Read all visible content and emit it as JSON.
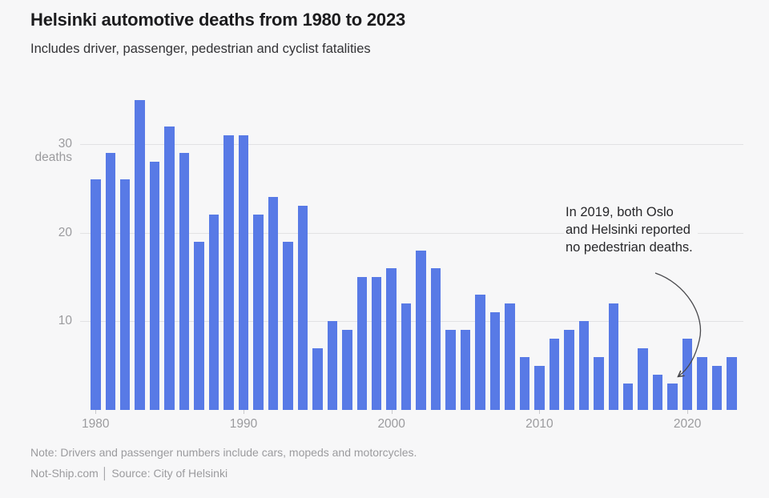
{
  "header": {
    "title": "Helsinki automotive deaths from 1980 to 2023",
    "subtitle": "Includes driver, passenger, pedestrian and cyclist fatalities"
  },
  "chart_data": {
    "type": "bar",
    "x": [
      1980,
      1981,
      1982,
      1983,
      1984,
      1985,
      1986,
      1987,
      1988,
      1989,
      1990,
      1991,
      1992,
      1993,
      1994,
      1995,
      1996,
      1997,
      1998,
      1999,
      2000,
      2001,
      2002,
      2003,
      2004,
      2005,
      2006,
      2007,
      2008,
      2009,
      2010,
      2011,
      2012,
      2013,
      2014,
      2015,
      2016,
      2017,
      2018,
      2019,
      2020,
      2021,
      2022,
      2023
    ],
    "values": [
      26,
      29,
      26,
      35,
      28,
      32,
      29,
      19,
      22,
      31,
      31,
      22,
      24,
      19,
      23,
      7,
      10,
      9,
      15,
      15,
      16,
      12,
      18,
      16,
      9,
      9,
      13,
      11,
      12,
      6,
      5,
      8,
      9,
      10,
      6,
      12,
      3,
      7,
      4,
      3,
      8,
      6,
      5,
      6
    ],
    "title": "Helsinki automotive deaths from 1980 to 2023",
    "xlabel": "",
    "ylabel": "deaths",
    "ylim": [
      0,
      36
    ],
    "yticks": [
      10,
      20,
      30
    ],
    "xticks": [
      1980,
      1990,
      2000,
      2010,
      2020
    ],
    "grid": "horizontal",
    "legend": "none",
    "bar_color": "#587ae6",
    "annotation": {
      "text": "In 2019, both Oslo\nand Helsinki reported\nno pedestrian deaths.",
      "target_year": 2019,
      "target_value": 3
    }
  },
  "footer": {
    "note": "Note: Drivers and passenger numbers include cars, mopeds and motorcycles.",
    "credit": "Not-Ship.com │ Source: City of Helsinki"
  }
}
